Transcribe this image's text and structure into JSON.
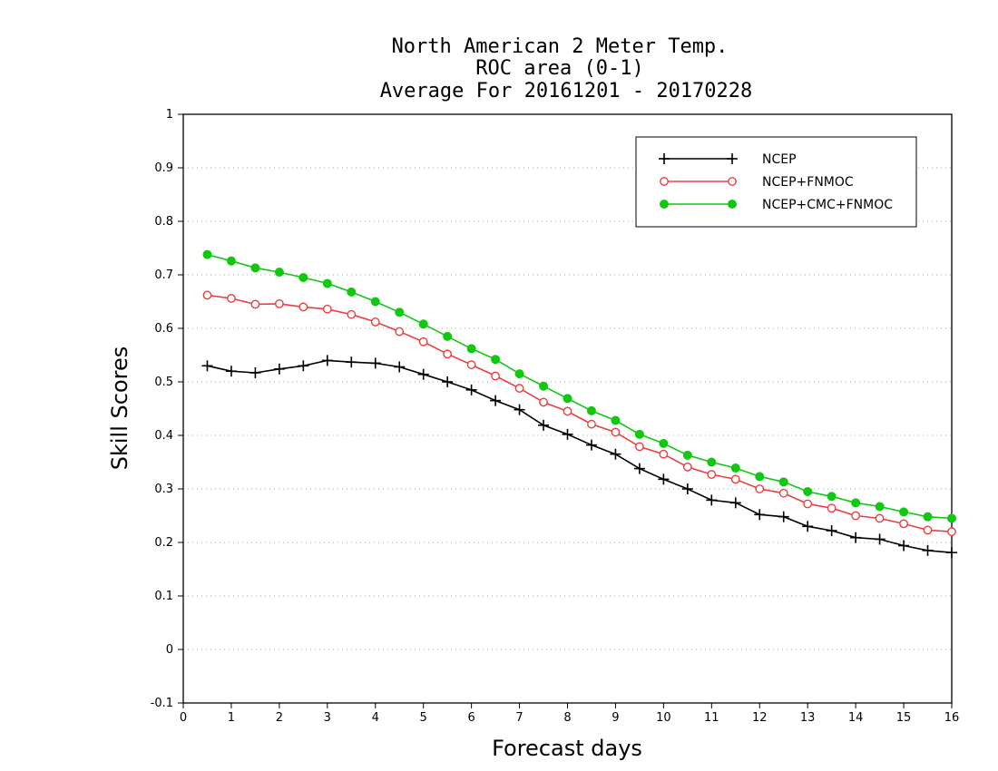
{
  "chart_data": {
    "type": "line",
    "title": [
      "North American 2 Meter Temp.",
      "ROC area (0-1)",
      "Average For 20161201 - 20170228"
    ],
    "xlabel": "Forecast days",
    "ylabel": "Skill Scores",
    "xlim": [
      0,
      16
    ],
    "ylim": [
      -0.1,
      1
    ],
    "xticks": [
      0,
      1,
      2,
      3,
      4,
      5,
      6,
      7,
      8,
      9,
      10,
      11,
      12,
      13,
      14,
      15,
      16
    ],
    "yticks": [
      -0.1,
      0,
      0.1,
      0.2,
      0.3,
      0.4,
      0.5,
      0.6,
      0.7,
      0.8,
      0.9,
      1
    ],
    "ytick_labels": [
      "-0.1",
      "0",
      "0.1",
      "0.2",
      "0.3",
      "0.4",
      "0.5",
      "0.6",
      "0.7",
      "0.8",
      "0.9",
      "1"
    ],
    "grid": "horizontal dotted",
    "legend_position": "top-right",
    "x": [
      0.5,
      1,
      1.5,
      2,
      2.5,
      3,
      3.5,
      4,
      4.5,
      5,
      5.5,
      6,
      6.5,
      7,
      7.5,
      8,
      8.5,
      9,
      9.5,
      10,
      10.5,
      11,
      11.5,
      12,
      12.5,
      13,
      13.5,
      14,
      14.5,
      15,
      15.5,
      16
    ],
    "series": [
      {
        "name": "NCEP",
        "color": "#000000",
        "marker": "plus",
        "values": [
          0.53,
          0.52,
          0.517,
          0.524,
          0.53,
          0.54,
          0.537,
          0.535,
          0.528,
          0.514,
          0.5,
          0.485,
          0.465,
          0.448,
          0.419,
          0.402,
          0.382,
          0.365,
          0.338,
          0.318,
          0.3,
          0.279,
          0.274,
          0.252,
          0.248,
          0.23,
          0.222,
          0.209,
          0.206,
          0.194,
          0.185,
          0.181
        ]
      },
      {
        "name": "NCEP+FNMOC",
        "color": "#e84040",
        "marker": "open-circle",
        "values": [
          0.662,
          0.656,
          0.645,
          0.646,
          0.64,
          0.636,
          0.626,
          0.612,
          0.594,
          0.575,
          0.552,
          0.532,
          0.511,
          0.488,
          0.462,
          0.445,
          0.421,
          0.406,
          0.379,
          0.365,
          0.341,
          0.327,
          0.318,
          0.3,
          0.292,
          0.272,
          0.264,
          0.25,
          0.245,
          0.235,
          0.223,
          0.22
        ]
      },
      {
        "name": "NCEP+CMC+FNMOC",
        "color": "#10c810",
        "marker": "filled-circle",
        "values": [
          0.738,
          0.726,
          0.713,
          0.705,
          0.695,
          0.684,
          0.668,
          0.65,
          0.63,
          0.608,
          0.585,
          0.562,
          0.542,
          0.515,
          0.492,
          0.469,
          0.446,
          0.428,
          0.402,
          0.385,
          0.363,
          0.35,
          0.339,
          0.323,
          0.313,
          0.295,
          0.286,
          0.274,
          0.267,
          0.257,
          0.248,
          0.245
        ]
      }
    ]
  }
}
